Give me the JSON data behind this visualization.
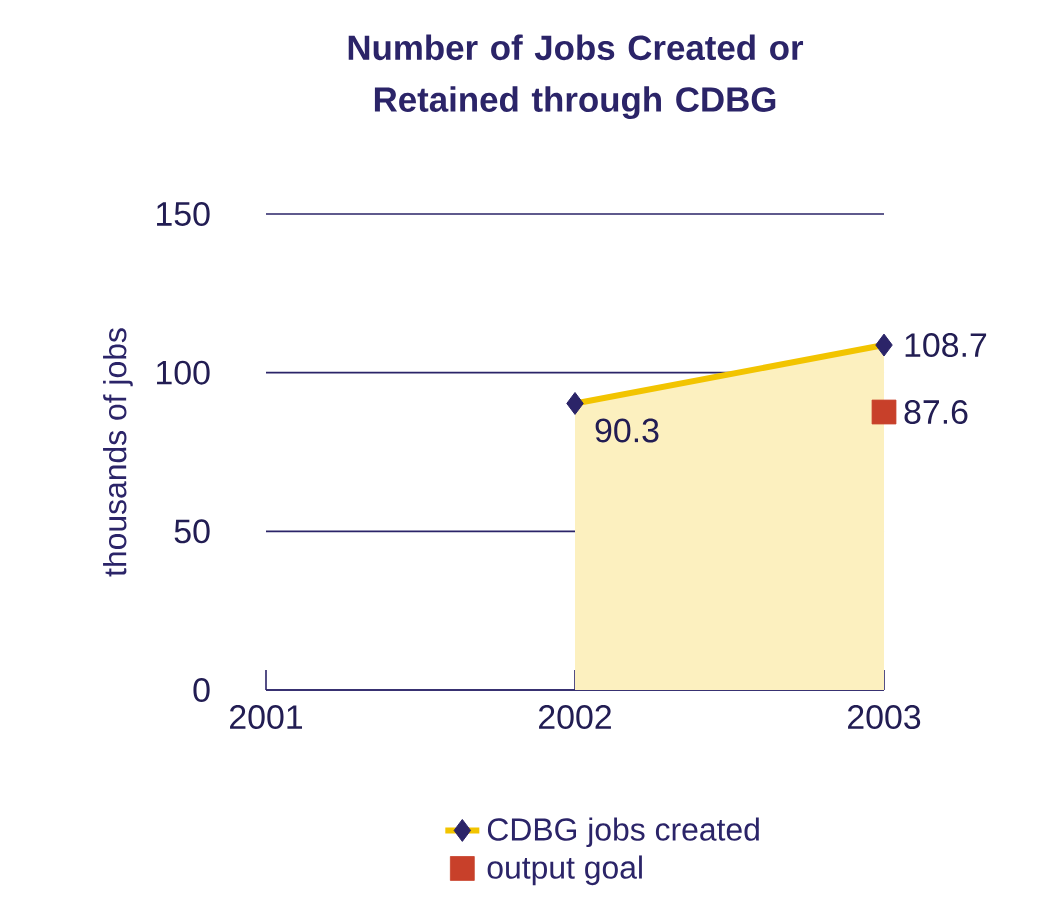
{
  "chart_data": {
    "type": "area",
    "title": "Number of Jobs Created or Retained through CDBG",
    "ylabel": "thousands of jobs",
    "categories": [
      "2001",
      "2002",
      "2003"
    ],
    "series": [
      {
        "name": "CDBG jobs created",
        "color": "#f2c400",
        "marker": "diamond",
        "values": [
          null,
          90.3,
          108.7
        ]
      },
      {
        "name": "output goal",
        "type": "scatter",
        "color": "#c8402a",
        "marker": "square",
        "values": [
          null,
          null,
          87.6
        ]
      }
    ],
    "ylim": [
      0,
      150
    ],
    "yticks": [
      0,
      50,
      100,
      150
    ],
    "grid": "y",
    "legend": "bottom",
    "data_labels": true
  }
}
